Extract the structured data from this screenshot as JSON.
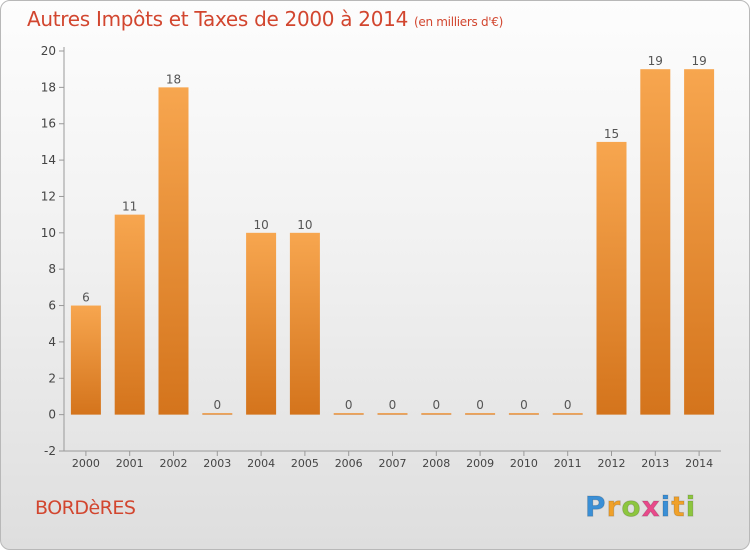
{
  "title": {
    "main": "Autres Impôts et Taxes de 2000 à 2014",
    "unit": "(en milliers d'€)"
  },
  "commune": "BORDèRES",
  "logo": {
    "letters": [
      "P",
      "r",
      "o",
      "x",
      "i",
      "t",
      "i"
    ],
    "colors": [
      "#3a8fd6",
      "#f0a12a",
      "#8dc63f",
      "#e84a8b",
      "#3a8fd6",
      "#f0a12a",
      "#8dc63f"
    ]
  },
  "colors": {
    "bar_light": "#f7a64f",
    "bar_dark": "#d4741c",
    "title": "#d2462f"
  },
  "chart_data": {
    "type": "bar",
    "title": "Autres Impôts et Taxes de 2000 à 2014",
    "subtitle": "(en milliers d'€)",
    "categories": [
      "2000",
      "2001",
      "2002",
      "2003",
      "2004",
      "2005",
      "2006",
      "2007",
      "2008",
      "2009",
      "2010",
      "2011",
      "2012",
      "2013",
      "2014"
    ],
    "values": [
      6,
      11,
      18,
      0,
      10,
      10,
      0,
      0,
      0,
      0,
      0,
      0,
      15,
      19,
      19
    ],
    "ylim": [
      -2,
      20
    ],
    "yticks": [
      -2,
      0,
      2,
      4,
      6,
      8,
      10,
      12,
      14,
      16,
      18,
      20
    ],
    "grid": false,
    "legend": "none"
  }
}
